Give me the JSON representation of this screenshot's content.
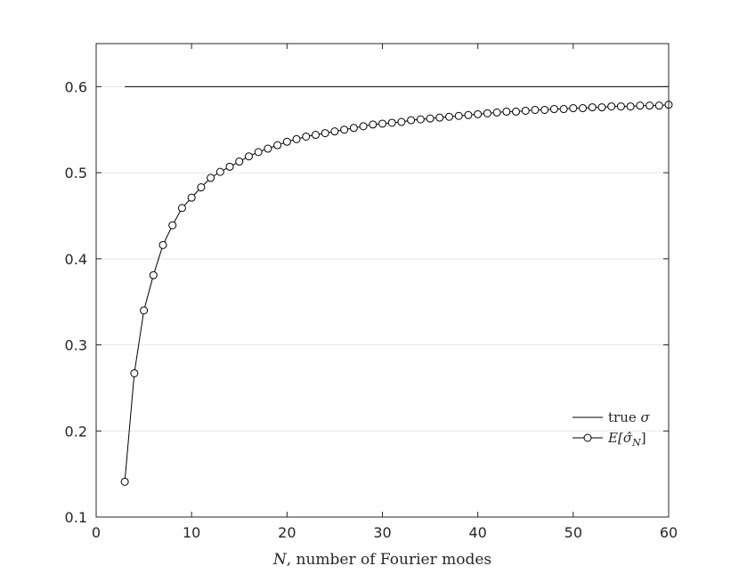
{
  "chart_data": {
    "type": "line",
    "xlabel": {
      "var": "N",
      "rest": ", number of Fourier modes"
    },
    "ylabel": "",
    "xlim": [
      0,
      60
    ],
    "ylim": [
      0.1,
      0.65
    ],
    "xticks": [
      0,
      10,
      20,
      30,
      40,
      50,
      60
    ],
    "xtick_labels": [
      "0",
      "10",
      "20",
      "30",
      "40",
      "50",
      "60"
    ],
    "yticks": [
      0.1,
      0.2,
      0.3,
      0.4,
      0.5,
      0.6
    ],
    "ytick_labels": [
      "0.1",
      "0.2",
      "0.3",
      "0.4",
      "0.5",
      "0.6"
    ],
    "grid": "horizontal",
    "legend_position": "lower-right",
    "series": [
      {
        "name": "true σ",
        "legend_parts": [
          "true ",
          "σ"
        ],
        "style": "solid line",
        "color": "#000000",
        "x": [
          3,
          60
        ],
        "y": [
          0.6,
          0.6
        ]
      },
      {
        "name": "E[σ̂_N]",
        "legend_parts": [
          "E[",
          "σ̂",
          "N",
          "]"
        ],
        "style": "line with circle markers",
        "color": "#000000",
        "x": [
          3,
          4,
          5,
          6,
          7,
          8,
          9,
          10,
          11,
          12,
          13,
          14,
          15,
          16,
          17,
          18,
          19,
          20,
          21,
          22,
          23,
          24,
          25,
          26,
          27,
          28,
          29,
          30,
          31,
          32,
          33,
          34,
          35,
          36,
          37,
          38,
          39,
          40,
          41,
          42,
          43,
          44,
          45,
          46,
          47,
          48,
          49,
          50,
          51,
          52,
          53,
          54,
          55,
          56,
          57,
          58,
          59,
          60
        ],
        "y": [
          0.141,
          0.267,
          0.34,
          0.381,
          0.416,
          0.439,
          0.459,
          0.471,
          0.483,
          0.494,
          0.501,
          0.507,
          0.513,
          0.519,
          0.524,
          0.528,
          0.532,
          0.536,
          0.539,
          0.542,
          0.544,
          0.546,
          0.548,
          0.55,
          0.552,
          0.554,
          0.556,
          0.557,
          0.558,
          0.559,
          0.561,
          0.562,
          0.563,
          0.564,
          0.565,
          0.566,
          0.567,
          0.568,
          0.569,
          0.57,
          0.571,
          0.571,
          0.572,
          0.573,
          0.573,
          0.574,
          0.574,
          0.575,
          0.575,
          0.576,
          0.576,
          0.577,
          0.577,
          0.577,
          0.578,
          0.578,
          0.578,
          0.579
        ]
      }
    ]
  }
}
